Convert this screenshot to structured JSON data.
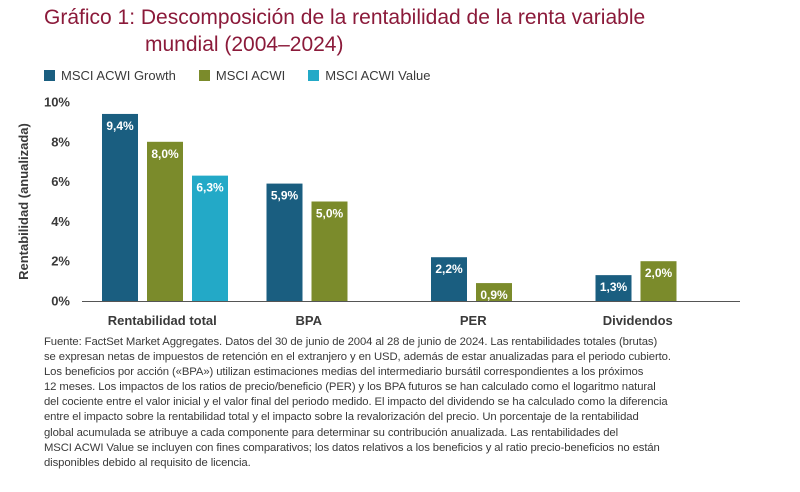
{
  "title": {
    "line1": "Gráfico 1: Descomposición de la rentabilidad de la renta variable",
    "line2": "mundial (2004–2024)"
  },
  "colors": {
    "title": "#8b1a3a",
    "growth": "#1a5e80",
    "acwi": "#7b8b2b",
    "value": "#23a9c7",
    "axis": "#555555"
  },
  "legend": [
    {
      "label": "MSCI ACWI Growth",
      "color": "#1a5e80"
    },
    {
      "label": "MSCI ACWI",
      "color": "#7b8b2b"
    },
    {
      "label": "MSCI ACWI Value",
      "color": "#23a9c7"
    }
  ],
  "chart_data": {
    "type": "bar",
    "title": "Gráfico 1: Descomposición de la rentabilidad de la renta variable mundial (2004–2024)",
    "categories": [
      "Rentabilidad total",
      "BPA",
      "PER",
      "Dividendos"
    ],
    "ylabel": "Rentabilidad (anualizada)",
    "xlabel": "",
    "ylim": [
      0,
      10
    ],
    "yticks": [
      0,
      2,
      4,
      6,
      8,
      10
    ],
    "ytick_labels": [
      "0%",
      "2%",
      "4%",
      "6%",
      "8%",
      "10%"
    ],
    "legend_position": "top-left",
    "grid": false,
    "series": [
      {
        "name": "MSCI ACWI Growth",
        "color": "#1a5e80",
        "values": [
          9.4,
          5.9,
          2.2,
          1.3
        ],
        "labels": [
          "9,4%",
          "5,9%",
          "2,2%",
          "1,3%"
        ]
      },
      {
        "name": "MSCI ACWI",
        "color": "#7b8b2b",
        "values": [
          8.0,
          5.0,
          0.9,
          2.0
        ],
        "labels": [
          "8,0%",
          "5,0%",
          "0,9%",
          "2,0%"
        ]
      },
      {
        "name": "MSCI ACWI Value",
        "color": "#23a9c7",
        "values": [
          6.3,
          null,
          null,
          null
        ],
        "labels": [
          "6,3%",
          null,
          null,
          null
        ]
      }
    ]
  },
  "footnote": {
    "lines": [
      "Fuente: FactSet Market Aggregates. Datos del 30 de junio de 2004 al 28 de junio de 2024. Las rentabilidades totales (brutas)",
      "se expresan netas de impuestos de retención en el extranjero y en USD, además de estar anualizadas para el periodo cubierto.",
      "Los beneficios por acción («BPA») utilizan estimaciones medias del intermediario bursátil correspondientes a los próximos",
      "12 meses. Los impactos de los ratios de precio/beneficio (PER) y los BPA futuros se han calculado como el logaritmo natural",
      "del cociente entre el valor inicial y el valor final del periodo medido. El impacto del dividendo se ha calculado como la diferencia",
      "entre el impacto sobre la rentabilidad total y el impacto sobre la revalorización del precio. Un porcentaje de la rentabilidad",
      "global acumulada se atribuye a cada componente para determinar su contribución anualizada. Las rentabilidades del",
      "MSCI ACWI Value se incluyen con fines comparativos; los datos relativos a los beneficios y al ratio precio-beneficios no están",
      "disponibles debido al requisito de licencia."
    ]
  }
}
